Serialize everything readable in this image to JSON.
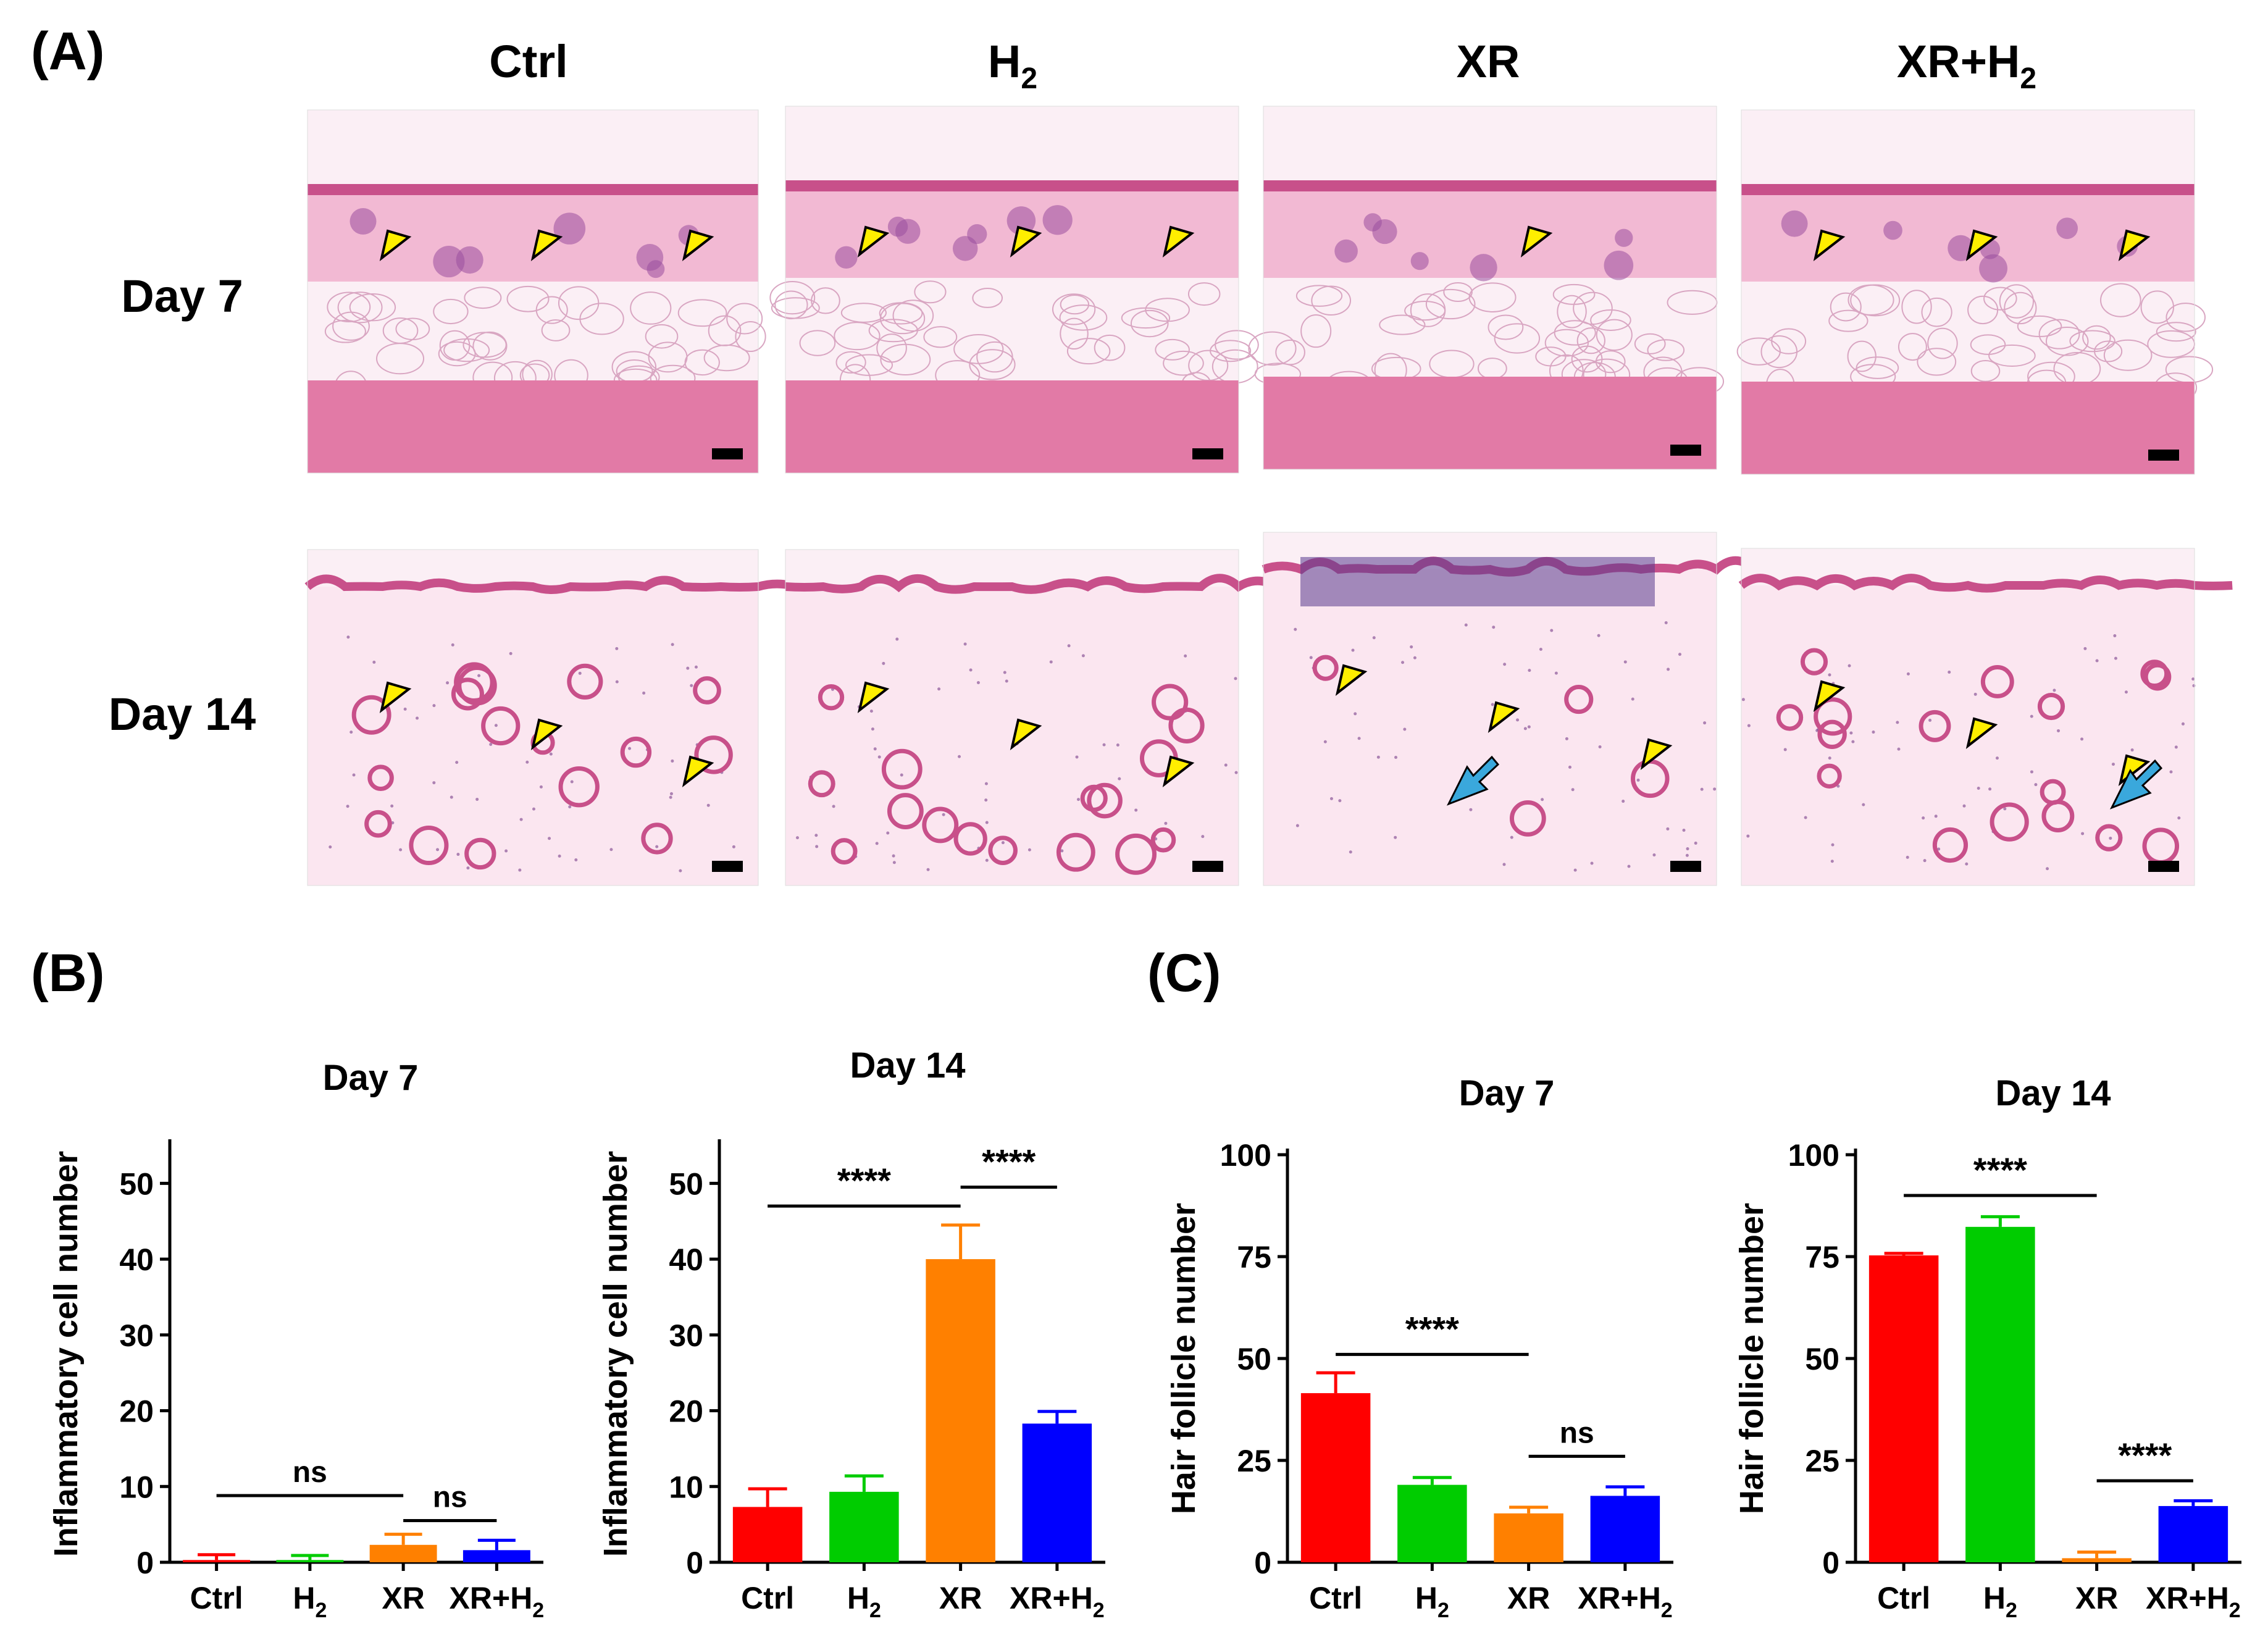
{
  "panels": {
    "A": {
      "label": "(A)",
      "columns": [
        {
          "main": "Ctrl",
          "sub": ""
        },
        {
          "main": "H",
          "sub": "2"
        },
        {
          "main": "XR",
          "sub": ""
        },
        {
          "main": "XR+H",
          "sub": "2"
        }
      ],
      "rows": [
        "Day 7",
        "Day 14"
      ],
      "micrograph_description": "H&E stained skin sections; yellow arrowheads mark hair follicles, blue arrows mark inflammatory cell infiltration; black bar = scale bar",
      "colors": {
        "epidermis": "#c8508a",
        "dermis": "#f2b9d3",
        "adipose": "#fbeff5",
        "muscle": "#e27aa6",
        "follicle": "#9a4f9e",
        "arrowhead": "#ffee00",
        "arrow": "#3aa8dc"
      }
    },
    "B": {
      "label": "(B)"
    },
    "C": {
      "label": "(C)"
    }
  },
  "chart_data": [
    {
      "type": "bar",
      "panel": "B",
      "title": "Day 7",
      "ylabel": "Inflammatory cell number",
      "categories": [
        "Ctrl",
        "H2",
        "XR",
        "XR+H2"
      ],
      "values": [
        0.3,
        0.3,
        2.3,
        1.6
      ],
      "errors": [
        0.7,
        0.6,
        1.4,
        1.3
      ],
      "colors": [
        "#ff0000",
        "#00cc00",
        "#ff8000",
        "#0000ff"
      ],
      "ylim": [
        0,
        55
      ],
      "yticks": [
        0,
        10,
        20,
        30,
        40,
        50
      ],
      "significance": [
        {
          "from": 0,
          "to": 2,
          "text": "ns",
          "y": 8.8
        },
        {
          "from": 2,
          "to": 3,
          "text": "ns",
          "y": 5.5
        }
      ]
    },
    {
      "type": "bar",
      "panel": "B",
      "title": "Day 14",
      "ylabel": "Inflammatory cell number",
      "categories": [
        "Ctrl",
        "H2",
        "XR",
        "XR+H2"
      ],
      "values": [
        7.3,
        9.3,
        40.0,
        18.3
      ],
      "errors": [
        2.4,
        2.1,
        4.5,
        1.6
      ],
      "colors": [
        "#ff0000",
        "#00cc00",
        "#ff8000",
        "#0000ff"
      ],
      "ylim": [
        0,
        55
      ],
      "yticks": [
        0,
        10,
        20,
        30,
        40,
        50
      ],
      "significance": [
        {
          "from": 0,
          "to": 2,
          "text": "****",
          "y": 47
        },
        {
          "from": 2,
          "to": 3,
          "text": "****",
          "y": 49.5
        }
      ]
    },
    {
      "type": "bar",
      "panel": "C",
      "title": "Day 7",
      "ylabel": "Hair follicle number",
      "categories": [
        "Ctrl",
        "H2",
        "XR",
        "XR+H2"
      ],
      "values": [
        41.5,
        19.0,
        12.0,
        16.3
      ],
      "errors": [
        5.0,
        1.8,
        1.5,
        2.2
      ],
      "colors": [
        "#ff0000",
        "#00cc00",
        "#ff8000",
        "#0000ff"
      ],
      "ylim": [
        0,
        100
      ],
      "yticks": [
        0,
        25,
        50,
        75,
        100
      ],
      "significance": [
        {
          "from": 0,
          "to": 2,
          "text": "****",
          "y": 51
        },
        {
          "from": 2,
          "to": 3,
          "text": "ns",
          "y": 26
        }
      ]
    },
    {
      "type": "bar",
      "panel": "C",
      "title": "Day 14",
      "ylabel": "Hair follicle number",
      "categories": [
        "Ctrl",
        "H2",
        "XR",
        "XR+H2"
      ],
      "values": [
        75.3,
        82.3,
        1.0,
        13.8
      ],
      "errors": [
        0.5,
        2.5,
        1.5,
        1.3
      ],
      "colors": [
        "#ff0000",
        "#00cc00",
        "#ff8000",
        "#0000ff"
      ],
      "ylim": [
        0,
        100
      ],
      "yticks": [
        0,
        25,
        50,
        75,
        100
      ],
      "significance": [
        {
          "from": 0,
          "to": 2,
          "text": "****",
          "y": 90
        },
        {
          "from": 2,
          "to": 3,
          "text": "****",
          "y": 20
        }
      ]
    }
  ]
}
